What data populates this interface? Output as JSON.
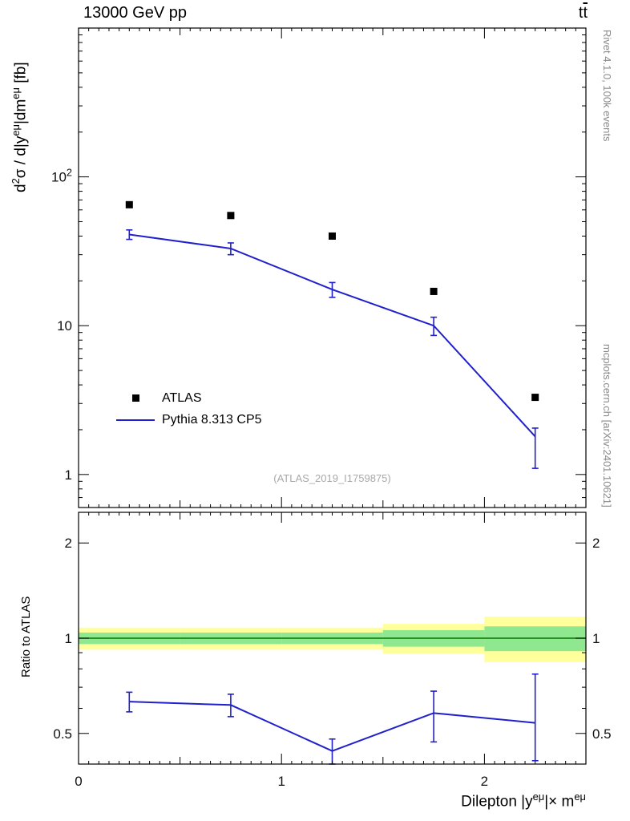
{
  "header": {
    "title_left": "13000 GeV pp",
    "title_right_segments": [
      {
        "t": "t"
      },
      {
        "t": "t",
        "bar": true
      }
    ]
  },
  "side_notes": {
    "rivet": "Rivet 4.1.0,  100k events",
    "mcplots": "mcplots.cern.ch [arXiv:2401.10621]"
  },
  "watermark": "(ATLAS_2019_I1759875)",
  "axes": {
    "ylabel_main_segments": [
      {
        "t": "d"
      },
      {
        "t": "2",
        "sup": true
      },
      {
        "t": "σ / d|y"
      },
      {
        "t": "eμ",
        "sup": true
      },
      {
        "t": "|dm"
      },
      {
        "t": "eμ",
        "sup": true
      },
      {
        "t": " [fb]"
      }
    ],
    "xlabel_segments": [
      {
        "t": "Dilepton |y"
      },
      {
        "t": "eμ",
        "sup": true
      },
      {
        "t": "|× m"
      },
      {
        "t": "eμ",
        "sup": true
      }
    ],
    "ratio_ylabel": "Ratio to ATLAS"
  },
  "chart_data": {
    "type": "line",
    "title": "13000 GeV pp",
    "process": "ttbar",
    "xlabel": "Dilepton |y^eμ| × m^eμ",
    "ylabel": "d²σ / d|y^eμ|dm^eμ [fb]",
    "x": [
      0.25,
      0.75,
      1.25,
      1.75,
      2.25
    ],
    "xlim": [
      0,
      2.5
    ],
    "xticks": [
      {
        "v": 0,
        "t": "0"
      },
      {
        "v": 1,
        "t": "1"
      },
      {
        "v": 2,
        "t": "2"
      }
    ],
    "main_panel": {
      "yscale": "log",
      "ylim": [
        0.6,
        1000
      ],
      "yticks": [
        {
          "v": 1,
          "t": "1"
        },
        {
          "v": 10,
          "t": "10"
        },
        {
          "v": 100,
          "t": "10",
          "e": "2"
        }
      ],
      "series": [
        {
          "name": "ATLAS",
          "style": "square-marker",
          "color": "#000000",
          "values": [
            65,
            55,
            40,
            17,
            3.3
          ]
        },
        {
          "name": "Pythia 8.313 CP5",
          "style": "line",
          "color": "#2020cd",
          "values": [
            41,
            33,
            17.5,
            10,
            1.8
          ],
          "yerr_lo": [
            3,
            3,
            2,
            1.4,
            0.7
          ],
          "yerr_hi": [
            3,
            3,
            2,
            1.4,
            0.25
          ]
        }
      ]
    },
    "ratio_panel": {
      "label": "Ratio to ATLAS",
      "yscale": "log",
      "ylim": [
        0.4,
        2.5
      ],
      "yticks": [
        {
          "v": 0.5,
          "t": "0.5"
        },
        {
          "v": 1,
          "t": "1"
        },
        {
          "v": 2,
          "t": "2"
        }
      ],
      "reference_line": {
        "value": 1,
        "color": "#007700"
      },
      "bands": {
        "edges": [
          0,
          0.5,
          1,
          1.5,
          2,
          2.5
        ],
        "yellow_color": "#ffff9c",
        "green_color": "#8fe88f",
        "yellow_lo": [
          0.92,
          0.92,
          0.92,
          0.895,
          0.84
        ],
        "yellow_hi": [
          1.08,
          1.08,
          1.08,
          1.11,
          1.17
        ],
        "green_lo": [
          0.958,
          0.958,
          0.958,
          0.94,
          0.91
        ],
        "green_hi": [
          1.042,
          1.042,
          1.042,
          1.06,
          1.09
        ]
      },
      "series": [
        {
          "name": "Pythia 8.313 CP5 / ATLAS",
          "style": "line",
          "color": "#2020cd",
          "values": [
            0.63,
            0.615,
            0.44,
            0.58,
            0.54
          ],
          "yerr_lo": [
            0.045,
            0.05,
            0.04,
            0.11,
            0.13
          ],
          "yerr_hi": [
            0.045,
            0.05,
            0.04,
            0.1,
            0.23
          ]
        }
      ]
    }
  }
}
